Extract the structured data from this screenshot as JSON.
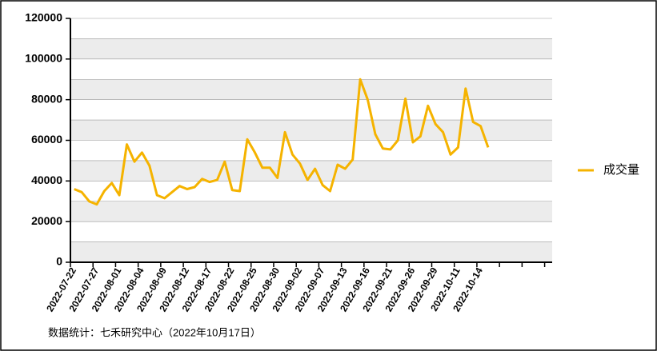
{
  "chart_data": {
    "type": "line",
    "categories": [
      "2022-07-22",
      null,
      null,
      "2022-07-27",
      null,
      null,
      "2022-08-01",
      null,
      null,
      "2022-08-04",
      null,
      null,
      "2022-08-09",
      null,
      null,
      "2022-08-12",
      null,
      null,
      "2022-08-17",
      null,
      null,
      "2022-08-22",
      null,
      null,
      "2022-08-25",
      null,
      null,
      "2022-08-30",
      null,
      null,
      "2022-09-02",
      null,
      null,
      "2022-09-07",
      null,
      null,
      "2022-09-13",
      null,
      null,
      "2022-09-16",
      null,
      null,
      "2022-09-21",
      null,
      null,
      "2022-09-26",
      null,
      null,
      "2022-09-29",
      null,
      null,
      "2022-10-11",
      null,
      null,
      "2022-10-14",
      null
    ],
    "series": [
      {
        "name": "成交量",
        "color": "#f5b300",
        "values": [
          36000,
          34500,
          30000,
          28500,
          35000,
          39000,
          33000,
          58000,
          49500,
          54000,
          47500,
          33000,
          31500,
          34500,
          37500,
          36000,
          37000,
          41000,
          39500,
          40500,
          49500,
          35500,
          35000,
          60500,
          54000,
          46500,
          46500,
          41500,
          64000,
          53000,
          48500,
          40500,
          46000,
          38000,
          35000,
          48000,
          46000,
          50500,
          90000,
          80000,
          63000,
          56000,
          55500,
          60000,
          80500,
          59000,
          62000,
          77000,
          68000,
          64000,
          53000,
          56500,
          85500,
          69000,
          67000,
          56500
        ]
      }
    ],
    "ylim": [
      0,
      120000
    ],
    "yticks": [
      0,
      20000,
      40000,
      60000,
      80000,
      100000,
      120000
    ],
    "grid": true,
    "legend": "right",
    "footnote": "数据统计：七禾研究中心（2022年10月17日）"
  }
}
